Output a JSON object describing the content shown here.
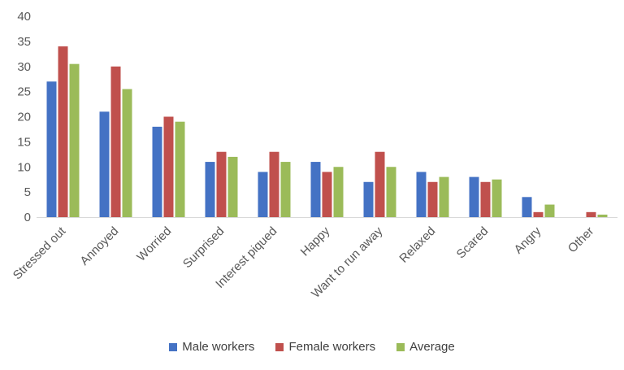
{
  "chart_data": {
    "type": "bar",
    "title": "",
    "xlabel": "",
    "ylabel": "",
    "ylim": [
      0,
      40
    ],
    "yticks": [
      0,
      5,
      10,
      15,
      20,
      25,
      30,
      35,
      40
    ],
    "grid": false,
    "legend_position": "bottom",
    "categories": [
      "Stressed out",
      "Annoyed",
      "Worried",
      "Surprised",
      "Interest piqued",
      "Happy",
      "Want to run away",
      "Relaxed",
      "Scared",
      "Angry",
      "Other"
    ],
    "series": [
      {
        "name": "Male workers",
        "color": "#4472C4",
        "values": [
          27,
          21,
          18,
          11,
          9,
          11,
          7,
          9,
          8,
          4,
          0
        ]
      },
      {
        "name": "Female workers",
        "color": "#C0504D",
        "values": [
          34,
          30,
          20,
          13,
          13,
          9,
          13,
          7,
          7,
          1,
          1
        ]
      },
      {
        "name": "Average",
        "color": "#9BBB59",
        "values": [
          30.5,
          25.5,
          19,
          12,
          11,
          10,
          10,
          8,
          7.5,
          2.5,
          0.5
        ]
      }
    ]
  }
}
